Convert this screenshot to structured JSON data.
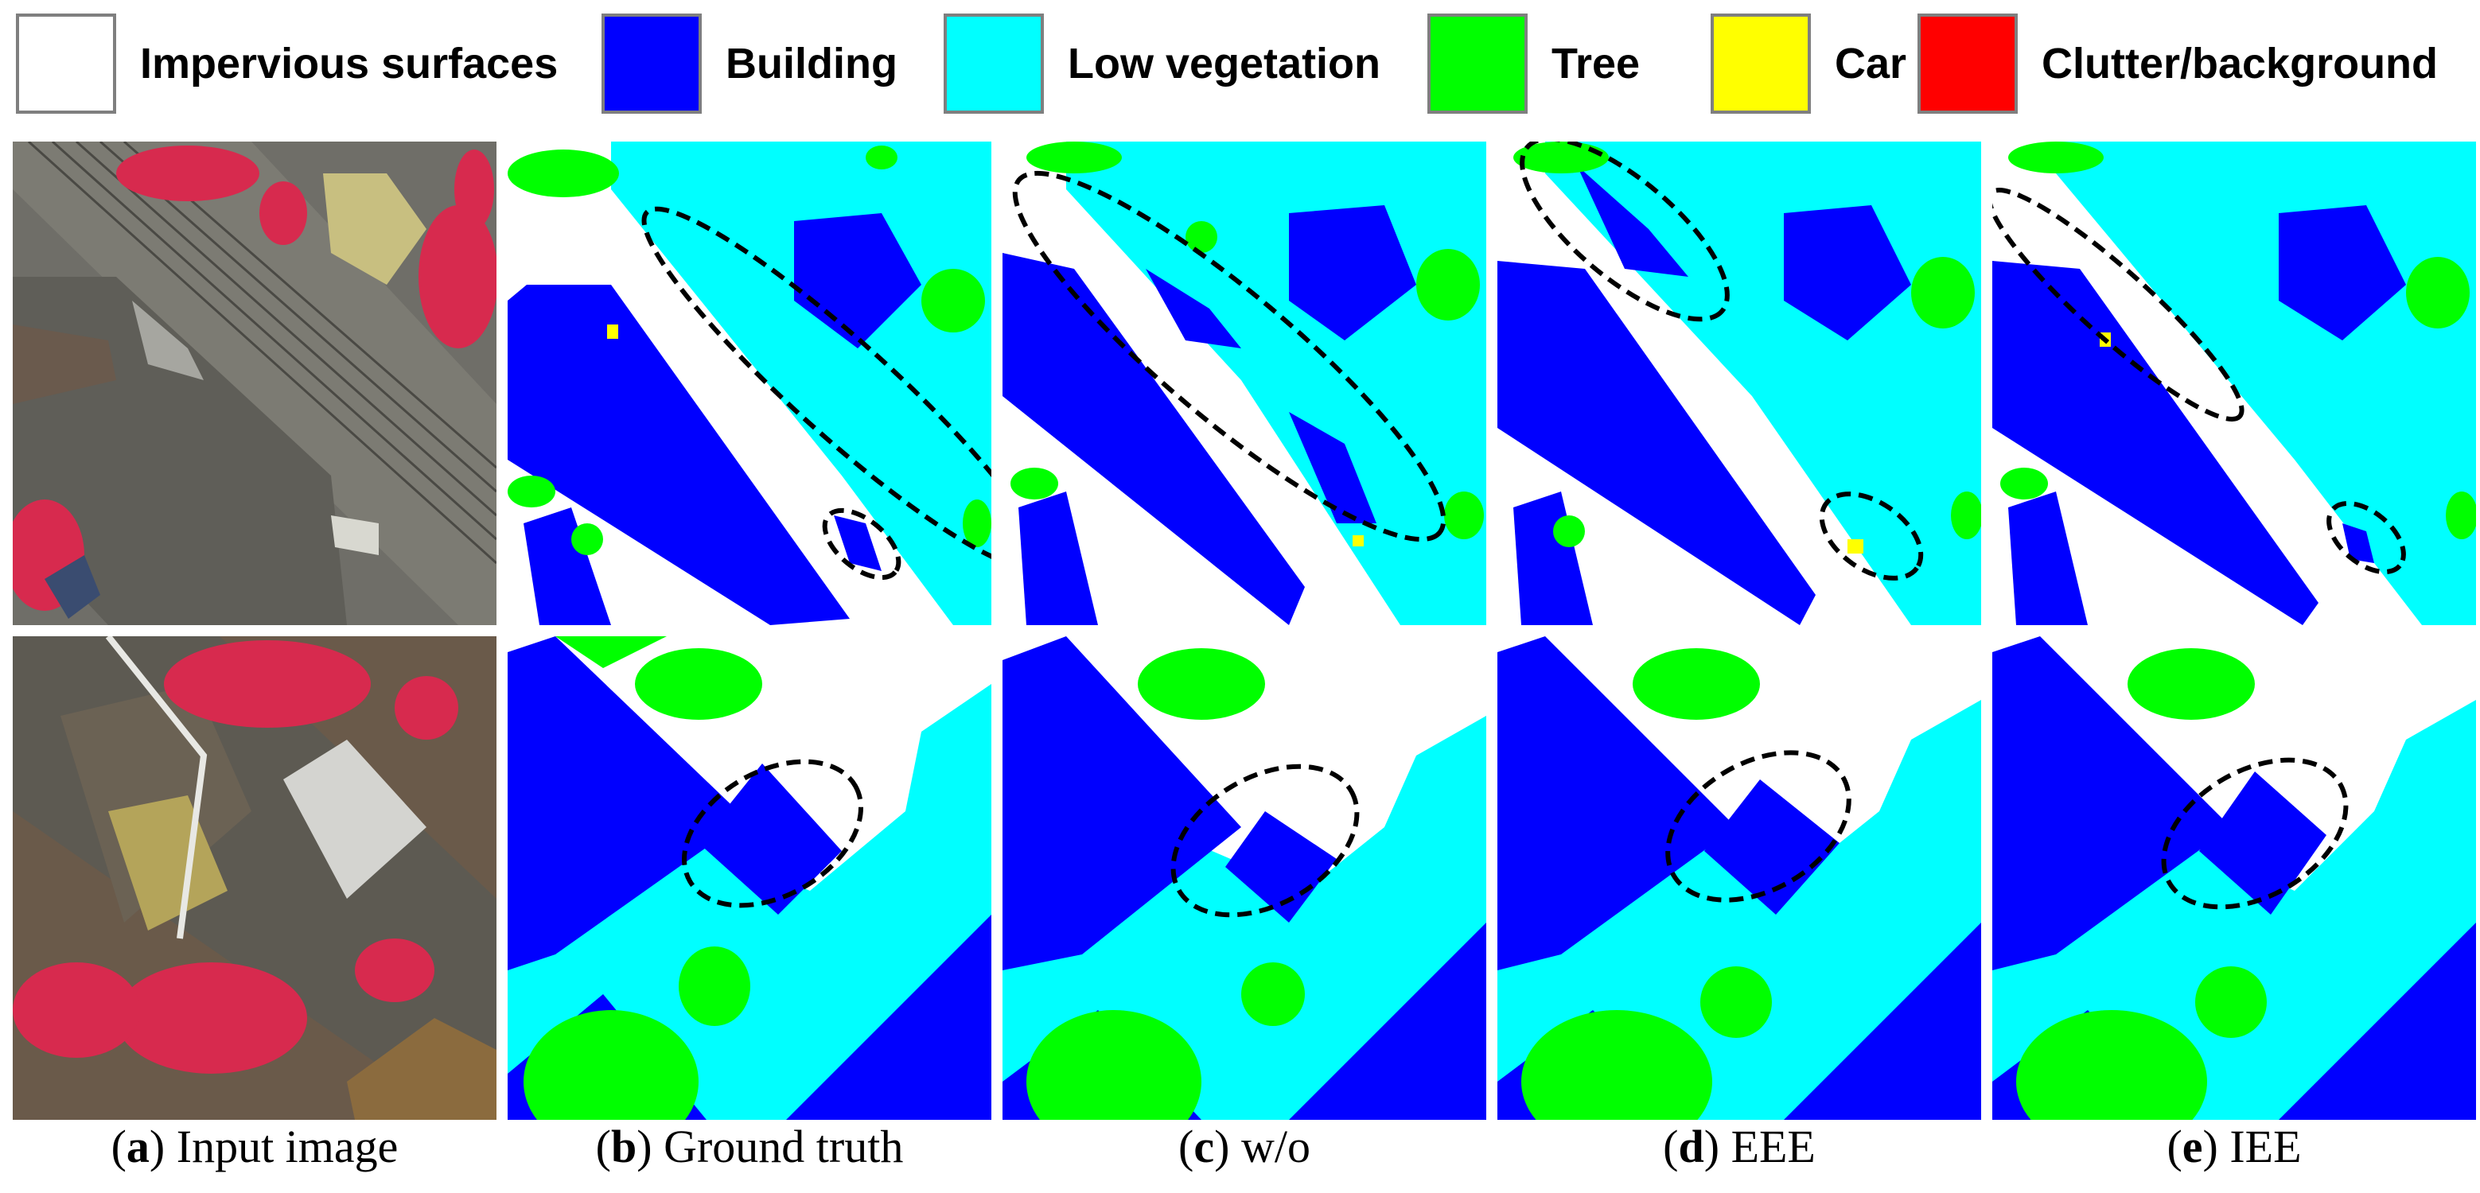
{
  "legend": [
    {
      "label": "Impervious surfaces",
      "color": "#ffffff"
    },
    {
      "label": "Building",
      "color": "#0000ff"
    },
    {
      "label": "Low vegetation",
      "color": "#00ffff"
    },
    {
      "label": "Tree",
      "color": "#00ff00"
    },
    {
      "label": "Car",
      "color": "#ffff00"
    },
    {
      "label": "Clutter/background",
      "color": "#ff0000"
    }
  ],
  "captions": [
    {
      "letter": "a",
      "text": "Input image"
    },
    {
      "letter": "b",
      "text": "Ground truth"
    },
    {
      "letter": "c",
      "text": "w/o"
    },
    {
      "letter": "d",
      "text": "EEE"
    },
    {
      "letter": "e",
      "text": "IEE"
    }
  ]
}
